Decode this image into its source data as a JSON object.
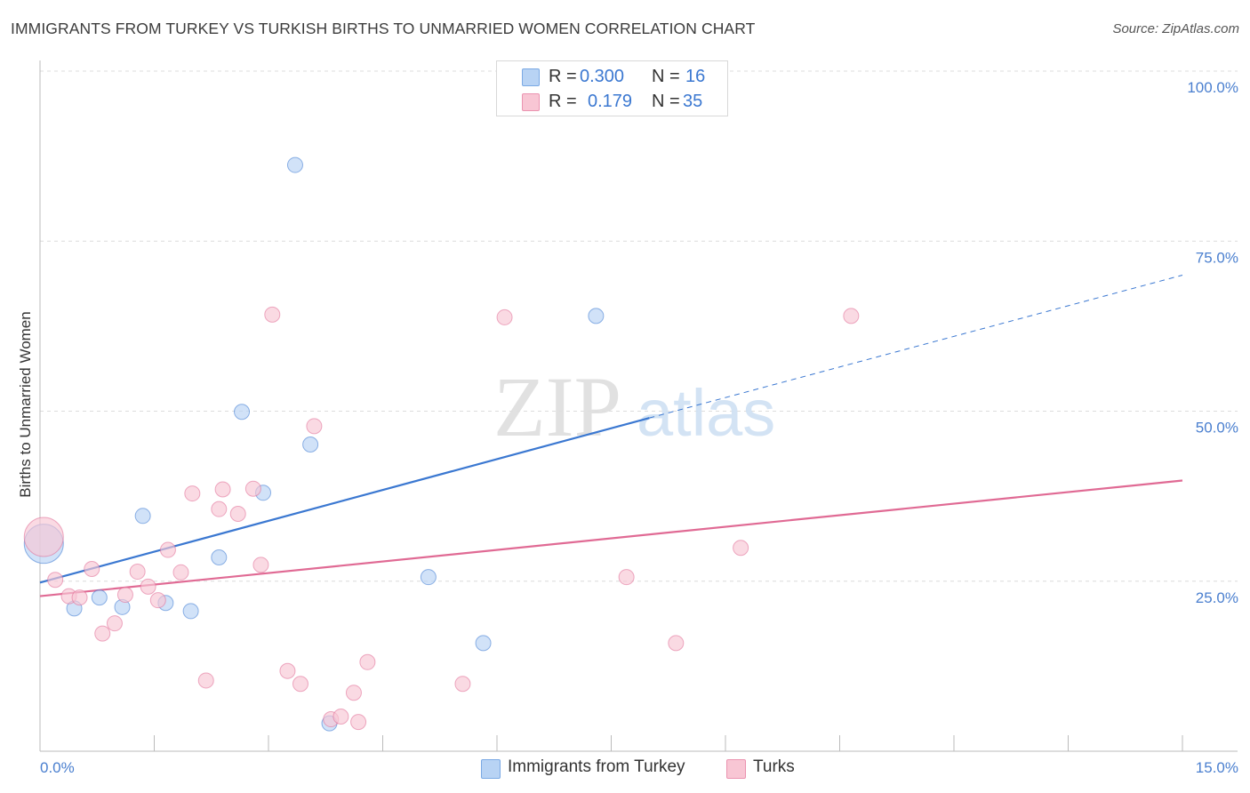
{
  "title": "IMMIGRANTS FROM TURKEY VS TURKISH BIRTHS TO UNMARRIED WOMEN CORRELATION CHART",
  "source": "Source: ZipAtlas.com",
  "watermark": {
    "zip": "ZIP",
    "atlas": "atlas"
  },
  "legend": {
    "rows": [
      {
        "r_label": "R =",
        "r_value": "0.300",
        "n_label": "N =",
        "n_value": "16",
        "color": "#a9c8f1"
      },
      {
        "r_label": "R =",
        "r_value": "0.179",
        "n_label": "N =",
        "n_value": "35",
        "color": "#f7bfd0"
      }
    ]
  },
  "bottom_legend": [
    {
      "label": "Immigrants from Turkey",
      "color": "#b8d3f4"
    },
    {
      "label": "Turks",
      "color": "#f8c6d4"
    }
  ],
  "chart_data": {
    "type": "scatter",
    "ylabel": "Births to Unmarried Women",
    "xlim": [
      0,
      15
    ],
    "ylim": [
      0,
      100
    ],
    "x_tick_labels": [
      "0.0%",
      "15.0%"
    ],
    "y_ticks": [
      25,
      50,
      75,
      100
    ],
    "y_tick_labels": [
      "25.0%",
      "50.0%",
      "75.0%",
      "100.0%"
    ],
    "grid": true,
    "series": [
      {
        "name": "Immigrants from Turkey",
        "color": "#3b78d1",
        "fill": "#b8d3f4",
        "points": [
          {
            "x": 0.05,
            "y": 30.5,
            "big": true
          },
          {
            "x": 0.45,
            "y": 21.0
          },
          {
            "x": 0.78,
            "y": 22.6
          },
          {
            "x": 1.08,
            "y": 21.2
          },
          {
            "x": 1.35,
            "y": 34.6
          },
          {
            "x": 1.65,
            "y": 21.8
          },
          {
            "x": 1.98,
            "y": 20.6
          },
          {
            "x": 2.35,
            "y": 28.5
          },
          {
            "x": 2.65,
            "y": 49.9
          },
          {
            "x": 2.93,
            "y": 38.0
          },
          {
            "x": 3.35,
            "y": 86.2
          },
          {
            "x": 3.55,
            "y": 45.1
          },
          {
            "x": 3.8,
            "y": 4.1
          },
          {
            "x": 5.1,
            "y": 25.6
          },
          {
            "x": 5.82,
            "y": 15.9
          },
          {
            "x": 7.3,
            "y": 64.0
          }
        ],
        "trend": {
          "x0": 0,
          "y0": 24.8,
          "x1": 8.0,
          "y1": 49.0,
          "x_dash_end": 15.0,
          "y_dash_end": 70.0
        }
      },
      {
        "name": "Turks",
        "color": "#e06a94",
        "fill": "#f8c6d4",
        "points": [
          {
            "x": 0.05,
            "y": 31.5,
            "big": true
          },
          {
            "x": 0.2,
            "y": 25.2
          },
          {
            "x": 0.38,
            "y": 22.8
          },
          {
            "x": 0.52,
            "y": 22.6
          },
          {
            "x": 0.68,
            "y": 26.8
          },
          {
            "x": 0.82,
            "y": 17.3
          },
          {
            "x": 0.98,
            "y": 18.8
          },
          {
            "x": 1.12,
            "y": 23.0
          },
          {
            "x": 1.28,
            "y": 26.4
          },
          {
            "x": 1.42,
            "y": 24.2
          },
          {
            "x": 1.55,
            "y": 22.2
          },
          {
            "x": 1.68,
            "y": 29.6
          },
          {
            "x": 1.85,
            "y": 26.3
          },
          {
            "x": 2.0,
            "y": 37.9
          },
          {
            "x": 2.18,
            "y": 10.4
          },
          {
            "x": 2.35,
            "y": 35.6
          },
          {
            "x": 2.4,
            "y": 38.5
          },
          {
            "x": 2.6,
            "y": 34.9
          },
          {
            "x": 2.8,
            "y": 38.6
          },
          {
            "x": 2.9,
            "y": 27.4
          },
          {
            "x": 3.05,
            "y": 64.2
          },
          {
            "x": 3.25,
            "y": 11.8
          },
          {
            "x": 3.42,
            "y": 9.9
          },
          {
            "x": 3.6,
            "y": 47.8
          },
          {
            "x": 3.82,
            "y": 4.7
          },
          {
            "x": 3.95,
            "y": 5.1
          },
          {
            "x": 4.12,
            "y": 8.6
          },
          {
            "x": 4.18,
            "y": 4.3
          },
          {
            "x": 4.3,
            "y": 13.1
          },
          {
            "x": 5.55,
            "y": 9.9
          },
          {
            "x": 6.1,
            "y": 63.8
          },
          {
            "x": 7.7,
            "y": 25.6
          },
          {
            "x": 8.35,
            "y": 15.9
          },
          {
            "x": 9.2,
            "y": 29.9
          },
          {
            "x": 10.65,
            "y": 64.0
          }
        ],
        "trend": {
          "x0": 0,
          "y0": 22.8,
          "x1": 15.0,
          "y1": 39.8
        }
      }
    ]
  }
}
